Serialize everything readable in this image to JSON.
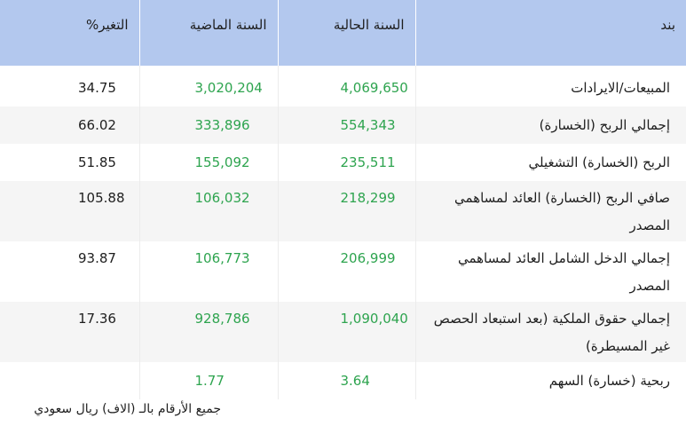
{
  "table": {
    "headers": {
      "item": "بند",
      "current": "السنة الحالية",
      "previous": "السنة الماضية",
      "change": "التغير%"
    },
    "rows": [
      {
        "item": "المبيعات/الايرادات",
        "current": "4,069,650",
        "previous": "3,020,204",
        "change": "34.75"
      },
      {
        "item": "إجمالي الربح (الخسارة)",
        "current": "554,343",
        "previous": "333,896",
        "change": "66.02"
      },
      {
        "item": "الربح (الخسارة) التشغيلي",
        "current": "235,511",
        "previous": "155,092",
        "change": "51.85"
      },
      {
        "item": "صافي الربح (الخسارة) العائد لمساهمي المصدر",
        "current": "218,299",
        "previous": "106,032",
        "change": "105.88"
      },
      {
        "item": "إجمالي الدخل الشامل العائد لمساهمي المصدر",
        "current": "206,999",
        "previous": "106,773",
        "change": "93.87"
      },
      {
        "item": "إجمالي حقوق الملكية (بعد استبعاد الحصص غير المسيطرة)",
        "current": "1,090,040",
        "previous": "928,786",
        "change": "17.36"
      },
      {
        "item": "ربحية (خسارة) السهم",
        "current": "3.64",
        "previous": "1.77",
        "change": ""
      }
    ]
  },
  "footnote": "جميع الأرقام بالـ (الاف) ريال سعودي",
  "colors": {
    "header_bg": "#b3c8ee",
    "value_green": "#2ea44f",
    "stripe": "#f5f5f5"
  }
}
